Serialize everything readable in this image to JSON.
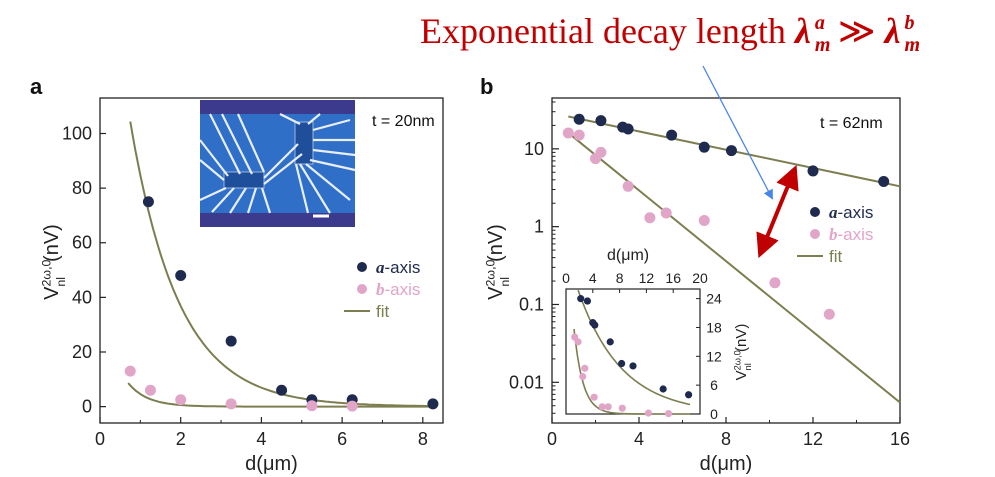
{
  "headline": {
    "text": "Exponential decay length",
    "symbol": "λ",
    "sup_a": "a",
    "sub_m": "m",
    "relation": "≫",
    "sup_b": "b"
  },
  "colors": {
    "a_axis": "#1f2a4f",
    "b_axis": "#e1a5c8",
    "fit": "#7d7e4f",
    "headline": "#c00000",
    "double_arrow": "#c00000",
    "pointer_arrow": "#4a86e8"
  },
  "chart_data": [
    {
      "panel": "a",
      "type": "scatter",
      "note": "t = 20nm",
      "xlabel": "d(μm)",
      "ylabel": "V_nl^{2ω,0}(nV)",
      "xlim": [
        0,
        8.5
      ],
      "ylim": [
        -6,
        113
      ],
      "xticks": [
        "0",
        "2",
        "4",
        "6",
        "8"
      ],
      "yticks": [
        "0",
        "20",
        "40",
        "60",
        "80",
        "100"
      ],
      "legend_position": "right",
      "series": [
        {
          "name": "a-axis",
          "x": [
            1.2,
            2.0,
            3.25,
            4.5,
            5.25,
            6.25,
            8.25
          ],
          "y": [
            75,
            48,
            24,
            6,
            2.5,
            2.5,
            1
          ]
        },
        {
          "name": "b-axis",
          "x": [
            0.75,
            1.25,
            2.0,
            3.25,
            5.25,
            6.25
          ],
          "y": [
            13,
            6,
            2.5,
            1,
            0.3,
            0.2
          ]
        }
      ],
      "fits": [
        {
          "name": "fit",
          "amplitude": 195,
          "decay_length": 1.2,
          "xrange": [
            0.75,
            8.3
          ]
        },
        {
          "name": "fit",
          "amplitude": 37,
          "decay_length": 0.48,
          "xrange": [
            0.7,
            8.3
          ]
        }
      ],
      "inset_image": "device micrograph"
    },
    {
      "panel": "b",
      "type": "scatter",
      "note": "t = 62nm",
      "xlabel": "d(μm)",
      "ylabel": "V_nl^{2ω,0}(nV)",
      "xlim": [
        0,
        16
      ],
      "ylim": [
        0.003,
        45
      ],
      "yscale": "log",
      "xticks": [
        "0",
        "4",
        "8",
        "12",
        "16"
      ],
      "yticks": [
        "0.01",
        "0.1",
        "1",
        "10"
      ],
      "legend_position": "right",
      "series": [
        {
          "name": "a-axis",
          "x": [
            1.25,
            2.25,
            3.25,
            3.5,
            5.5,
            7.0,
            8.25,
            12.0,
            15.25
          ],
          "y": [
            24,
            23,
            19,
            18,
            15,
            10.5,
            9.5,
            5.2,
            3.8
          ]
        },
        {
          "name": "b-axis",
          "x": [
            0.75,
            1.25,
            2.0,
            2.25,
            3.5,
            4.5,
            5.25,
            7.0,
            10.25,
            12.75
          ],
          "y": [
            16,
            15,
            7.5,
            9,
            3.3,
            1.3,
            1.5,
            1.2,
            0.19,
            0.075
          ]
        }
      ],
      "fits": [
        {
          "name": "fit",
          "x": [
            0.75,
            16
          ],
          "y": [
            26,
            3.3
          ]
        },
        {
          "name": "fit",
          "x": [
            0.75,
            16
          ],
          "y": [
            16,
            0.0055
          ]
        }
      ],
      "legend": [
        "a-axis",
        "b-axis",
        "fit"
      ],
      "inset": {
        "xlabel": "d(μm)",
        "ylabel": "V_nl^{2ω,0}(nV)",
        "xlim": [
          0,
          20
        ],
        "ylim": [
          0,
          26
        ],
        "xticks": [
          "0",
          "4",
          "8",
          "12",
          "16",
          "20"
        ],
        "yticks": [
          "0",
          "6",
          "12",
          "18",
          "24"
        ],
        "series": [
          {
            "name": "a-axis",
            "x": [
              2.2,
              3.2,
              4.0,
              4.3,
              6.6,
              8.3,
              10.0,
              14.5,
              18.3
            ],
            "y": [
              24,
              23.5,
              19,
              18.5,
              15,
              10.5,
              10,
              5.2,
              4
            ]
          },
          {
            "name": "b-axis",
            "x": [
              1.3,
              1.8,
              2.5,
              2.8,
              4.2,
              5.4,
              6.3,
              8.4,
              12.3,
              15.3
            ],
            "y": [
              16,
              15,
              7.8,
              9.5,
              3.5,
              1.5,
              1.5,
              1.2,
              0.2,
              0.08
            ]
          }
        ],
        "fits": [
          {
            "name": "fit",
            "amplitude": 34,
            "decay_length": 6.5,
            "xrange": [
              1.8,
              18.5
            ]
          },
          {
            "name": "fit",
            "amplitude": 43,
            "decay_length": 1.35,
            "xrange": [
              1.2,
              18.5
            ]
          }
        ]
      }
    }
  ]
}
